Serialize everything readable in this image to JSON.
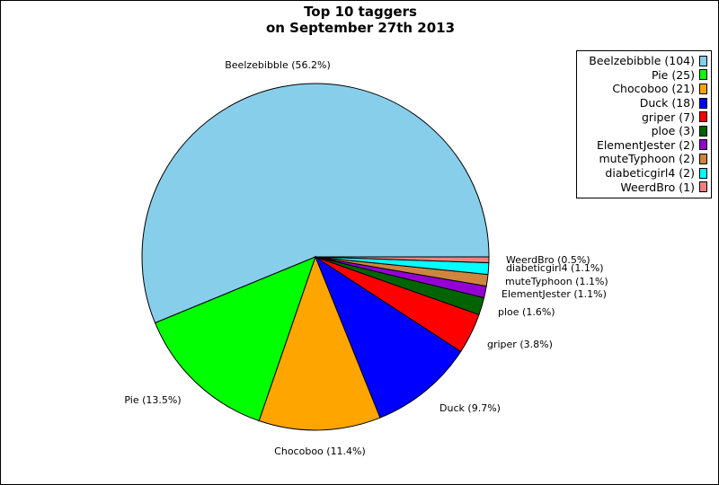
{
  "title": {
    "line1": "Top 10 taggers",
    "line2": "on September 27th 2013"
  },
  "chart_data": {
    "type": "pie",
    "title": "Top 10 taggers on September 27th 2013",
    "legend_position": "top-right",
    "slices": [
      {
        "name": "Beelzebibble",
        "count": 104,
        "percent": 56.2,
        "color": "#87ceeb",
        "legend": "Beelzebibble (104)",
        "label": "Beelzebibble (56.2%)"
      },
      {
        "name": "Pie",
        "count": 25,
        "percent": 13.5,
        "color": "#00ff00",
        "legend": "Pie (25)",
        "label": "Pie (13.5%)"
      },
      {
        "name": "Chocoboo",
        "count": 21,
        "percent": 11.4,
        "color": "#ffa500",
        "legend": "Chocoboo (21)",
        "label": "Chocoboo (11.4%)"
      },
      {
        "name": "Duck",
        "count": 18,
        "percent": 9.7,
        "color": "#0000ff",
        "legend": "Duck (18)",
        "label": "Duck (9.7%)"
      },
      {
        "name": "griper",
        "count": 7,
        "percent": 3.8,
        "color": "#ff0000",
        "legend": "griper (7)",
        "label": "griper (3.8%)"
      },
      {
        "name": "ploe",
        "count": 3,
        "percent": 1.6,
        "color": "#006400",
        "legend": "ploe (3)",
        "label": "ploe (1.6%)"
      },
      {
        "name": "ElementJester",
        "count": 2,
        "percent": 1.1,
        "color": "#9400d3",
        "legend": "ElementJester (2)",
        "label": "ElementJester (1.1%)"
      },
      {
        "name": "muteTyphoon",
        "count": 2,
        "percent": 1.1,
        "color": "#cd853f",
        "legend": "muteTyphoon (2)",
        "label": "muteTyphoon (1.1%)"
      },
      {
        "name": "diabeticgirl4",
        "count": 2,
        "percent": 1.1,
        "color": "#00ffff",
        "legend": "diabeticgirl4 (2)",
        "label": "diabeticgirl4 (1.1%)"
      },
      {
        "name": "WeerdBro",
        "count": 1,
        "percent": 0.5,
        "color": "#f08080",
        "legend": "WeerdBro (1)",
        "label": "WeerdBro (0.5%)"
      }
    ]
  }
}
